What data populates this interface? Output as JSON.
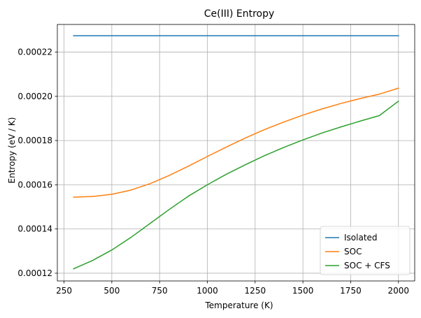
{
  "chart_data": {
    "type": "line",
    "title": "Ce(III) Entropy",
    "xlabel": "Temperature (K)",
    "ylabel": "Entropy (eV / K)",
    "xlim": [
      215,
      2085
    ],
    "ylim": [
      0.0001165,
      0.0002325
    ],
    "xticks": [
      250,
      500,
      750,
      1000,
      1250,
      1500,
      1750,
      2000
    ],
    "xtick_labels": [
      "250",
      "500",
      "750",
      "1000",
      "1250",
      "1500",
      "1750",
      "2000"
    ],
    "yticks": [
      0.00012,
      0.00014,
      0.00016,
      0.00018,
      0.0002,
      0.00022
    ],
    "ytick_labels": [
      "0.00012",
      "0.00014",
      "0.00016",
      "0.00018",
      "0.00020",
      "0.00022"
    ],
    "grid": true,
    "legend_position": "bottom-right",
    "x": [
      300,
      400,
      500,
      600,
      700,
      800,
      900,
      1000,
      1100,
      1200,
      1300,
      1400,
      1500,
      1600,
      1700,
      1800,
      1900,
      2000
    ],
    "series": [
      {
        "name": "Isolated",
        "color": "#1f77b4",
        "values": [
          0.0002274,
          0.0002274,
          0.0002274,
          0.0002274,
          0.0002274,
          0.0002274,
          0.0002274,
          0.0002274,
          0.0002274,
          0.0002274,
          0.0002274,
          0.0002274,
          0.0002274,
          0.0002274,
          0.0002274,
          0.0002274,
          0.0002274,
          0.0002274
        ]
      },
      {
        "name": "SOC",
        "color": "#ff7f0e",
        "values": [
          0.0001544,
          0.0001547,
          0.0001557,
          0.0001576,
          0.0001605,
          0.0001642,
          0.0001684,
          0.0001728,
          0.0001771,
          0.0001812,
          0.000185,
          0.0001884,
          0.0001915,
          0.0001943,
          0.0001968,
          0.000199,
          0.000201,
          0.0002037
        ]
      },
      {
        "name": "SOC + CFS",
        "color": "#2ca02c",
        "values": [
          0.000122,
          0.0001258,
          0.0001305,
          0.0001362,
          0.0001425,
          0.0001488,
          0.0001548,
          0.00016,
          0.0001648,
          0.0001691,
          0.0001732,
          0.0001769,
          0.0001803,
          0.0001834,
          0.0001862,
          0.0001888,
          0.0001913,
          0.0001978
        ]
      }
    ]
  }
}
